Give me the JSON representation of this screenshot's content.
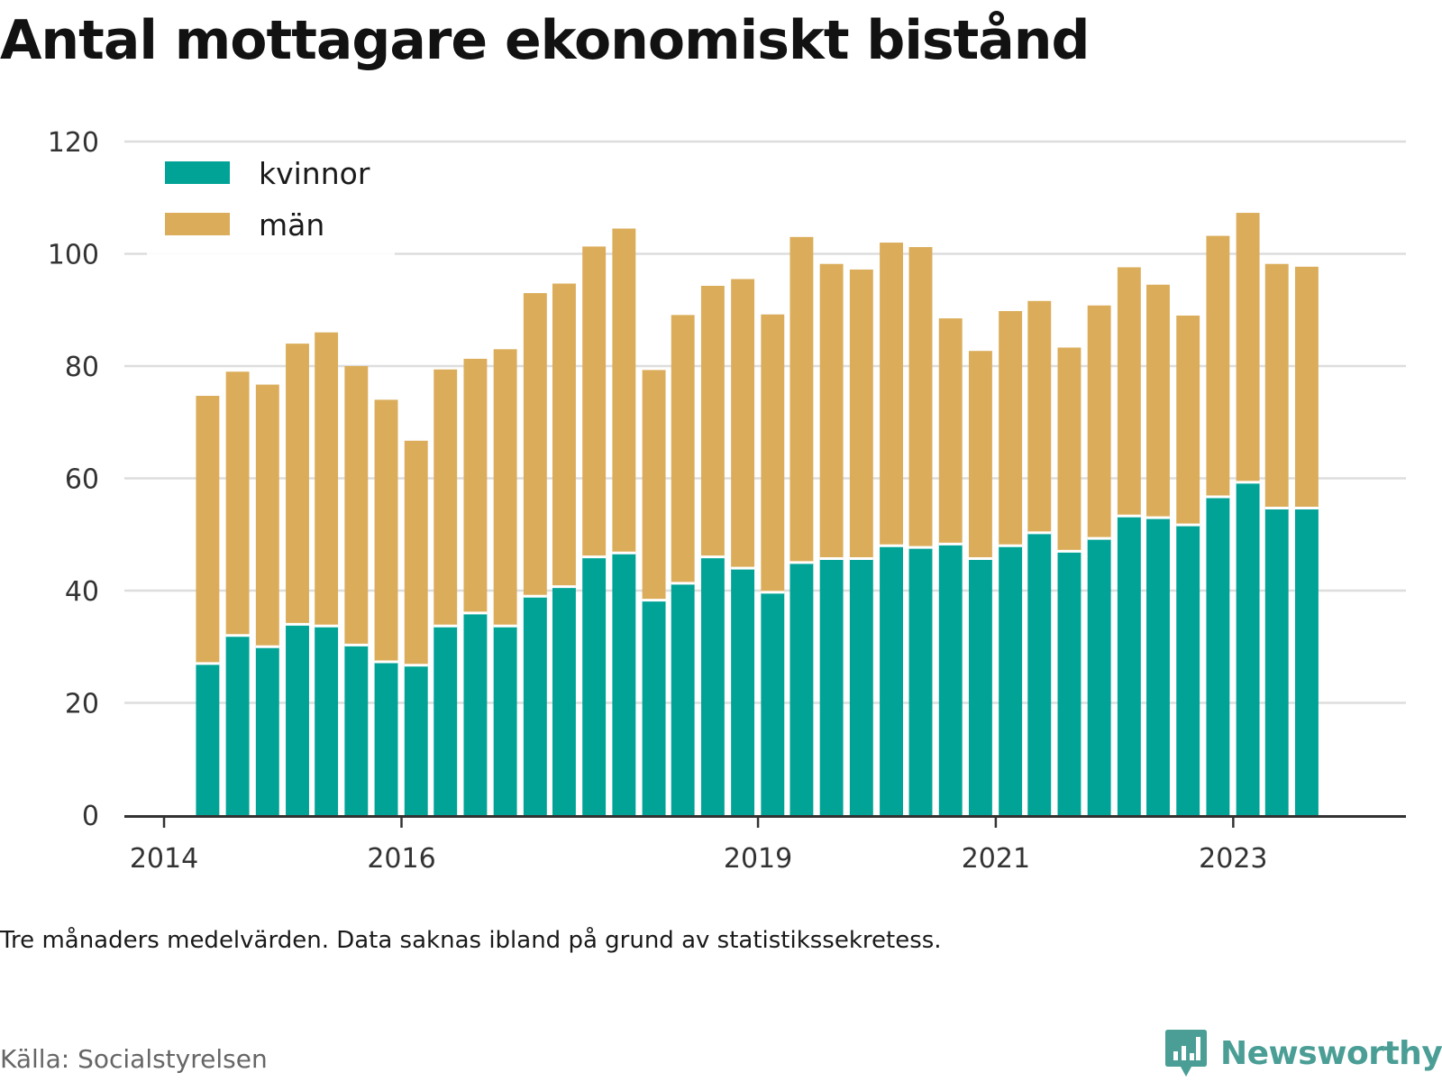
{
  "title": "Antal mottagare ekonomiskt bistånd",
  "note": "Tre månaders medelvärden. Data saknas ibland på grund av statistikssekretess.",
  "source": "Källa: Socialstyrelsen",
  "brand": {
    "name": "Newsworthy",
    "icon": "bar-chart-speech-bubble-icon",
    "color": "#4a9e95"
  },
  "colors": {
    "kvinnor": "#00a396",
    "man": "#dbad5a",
    "grid": "#dddddd",
    "axis": "#333333"
  },
  "chart_data": {
    "type": "bar",
    "stacked": true,
    "title": "Antal mottagare ekonomiskt bistånd",
    "xlabel": "",
    "ylabel": "",
    "ylim": [
      0,
      120
    ],
    "yticks": [
      0,
      20,
      40,
      60,
      80,
      100,
      120
    ],
    "x_ticks": [
      {
        "label": "2014",
        "date": "2014-01-01"
      },
      {
        "label": "2016",
        "date": "2016-01-01"
      },
      {
        "label": "2019",
        "date": "2019-01-01"
      },
      {
        "label": "2021",
        "date": "2021-01-01"
      },
      {
        "label": "2023",
        "date": "2023-01-01"
      }
    ],
    "xlim": [
      "2013-09-01",
      "2024-06-15"
    ],
    "grid": true,
    "legend_position": "top-left",
    "periods": [
      "2014-05",
      "2014-08",
      "2014-11",
      "2015-02",
      "2015-05",
      "2015-08",
      "2015-11",
      "2016-02",
      "2016-05",
      "2016-08",
      "2016-11",
      "2017-02",
      "2017-05",
      "2017-08",
      "2017-11",
      "2018-02",
      "2018-05",
      "2018-08",
      "2018-11",
      "2019-02",
      "2019-05",
      "2019-08",
      "2019-11",
      "2020-02",
      "2020-05",
      "2020-08",
      "2020-11",
      "2021-02",
      "2021-05",
      "2021-08",
      "2021-11",
      "2022-02",
      "2022-05",
      "2022-08",
      "2022-11",
      "2023-02",
      "2023-05",
      "2023-08"
    ],
    "series": [
      {
        "name": "kvinnor",
        "color": "#00a396",
        "values": [
          27,
          32,
          30,
          34,
          33.7,
          30.3,
          27.3,
          26.7,
          33.7,
          36,
          33.7,
          39,
          40.7,
          46,
          46.7,
          38.3,
          41.3,
          46,
          44,
          39.7,
          45,
          45.7,
          45.7,
          48,
          47.7,
          48.3,
          45.7,
          48,
          50.3,
          47,
          49.3,
          53.3,
          53,
          51.7,
          56.7,
          59.3,
          54.7,
          54.7
        ]
      },
      {
        "name": "män",
        "color": "#dbad5a",
        "values": [
          47.7,
          47,
          46.7,
          50,
          52.3,
          49.7,
          46.7,
          40,
          45.7,
          45.3,
          49.3,
          54,
          54,
          55.3,
          57.8,
          41,
          47.8,
          48.3,
          51.5,
          49.5,
          58,
          52.5,
          51.5,
          54,
          53.5,
          40.2,
          37,
          41.8,
          41.3,
          36.3,
          41.5,
          44.3,
          41.5,
          37.3,
          46.5,
          48,
          43.5,
          43
        ]
      }
    ]
  }
}
